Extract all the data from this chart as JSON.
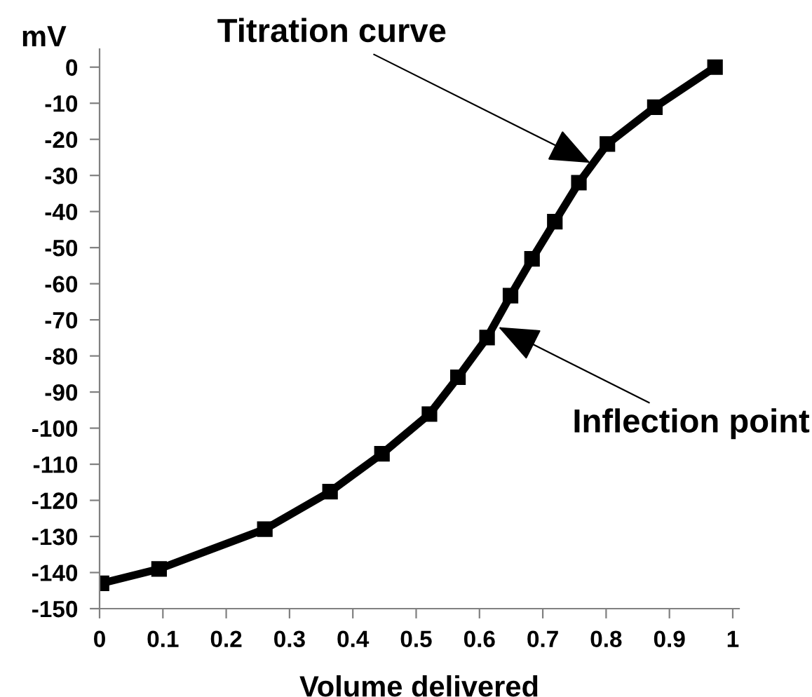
{
  "chart_data": {
    "type": "line",
    "xlabel": "Volume delivered",
    "ylabel": "mV",
    "x": [
      0.003,
      0.094,
      0.261,
      0.364,
      0.446,
      0.521,
      0.566,
      0.612,
      0.649,
      0.683,
      0.719,
      0.757,
      0.802,
      0.877,
      0.972
    ],
    "series": [
      {
        "color": "#000000",
        "values": [
          -143,
          -139,
          -128,
          -117.6,
          -107.1,
          -96.1,
          -85.9,
          -74.9,
          -63.3,
          -53.1,
          -42.8,
          -32,
          -21.3,
          -11.1,
          0
        ]
      }
    ],
    "marker": "square",
    "line_style": "solid",
    "grid": false,
    "legend": false,
    "xlim": [
      0,
      1.01
    ],
    "ylim": [
      -150,
      5
    ],
    "xticks": [
      0,
      0.1,
      0.2,
      0.3,
      0.4,
      0.5,
      0.6,
      0.7,
      0.8,
      0.9,
      1
    ],
    "yticks": [
      0,
      -10,
      -20,
      -30,
      -40,
      -50,
      -60,
      -70,
      -80,
      -90,
      -100,
      -110,
      -120,
      -130,
      -140,
      -150
    ],
    "annotations": [
      {
        "text": "Titration curve",
        "x": 0.775,
        "y": -26.5
      },
      {
        "text": "Inflection point",
        "x": 0.63,
        "y": -72
      }
    ]
  }
}
